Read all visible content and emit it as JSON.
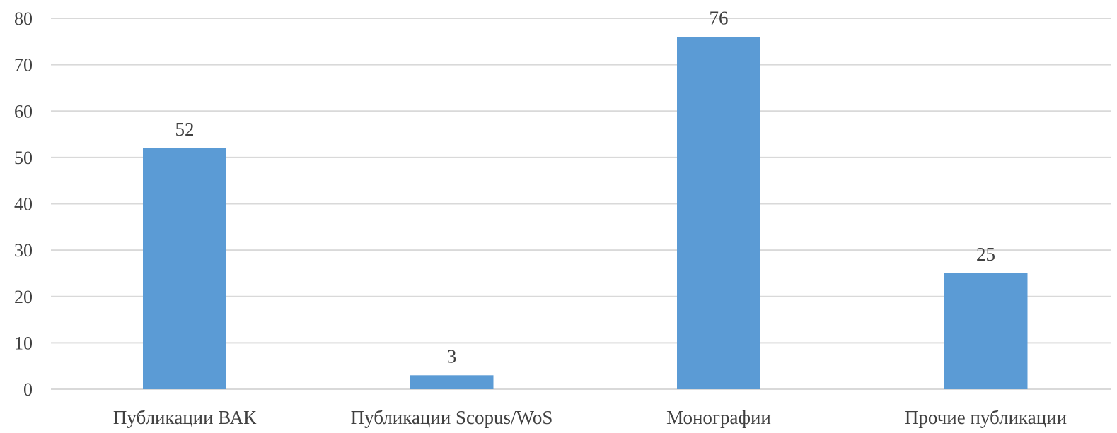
{
  "chart_data": {
    "type": "bar",
    "categories": [
      "Публикации ВАК",
      "Публикации Scopus/WoS",
      "Монографии",
      "Прочие публикации"
    ],
    "values": [
      52,
      3,
      76,
      25
    ],
    "data_labels": [
      "52",
      "3",
      "76",
      "25"
    ],
    "yticks": [
      "0",
      "10",
      "20",
      "30",
      "40",
      "50",
      "60",
      "70",
      "80"
    ],
    "ylim": [
      0,
      80
    ],
    "title": "",
    "xlabel": "",
    "ylabel": "",
    "grid": true,
    "legend": "none",
    "colors": {
      "bar": "#5B9BD5",
      "grid": "#D9D9D9",
      "text": "#404040"
    }
  }
}
